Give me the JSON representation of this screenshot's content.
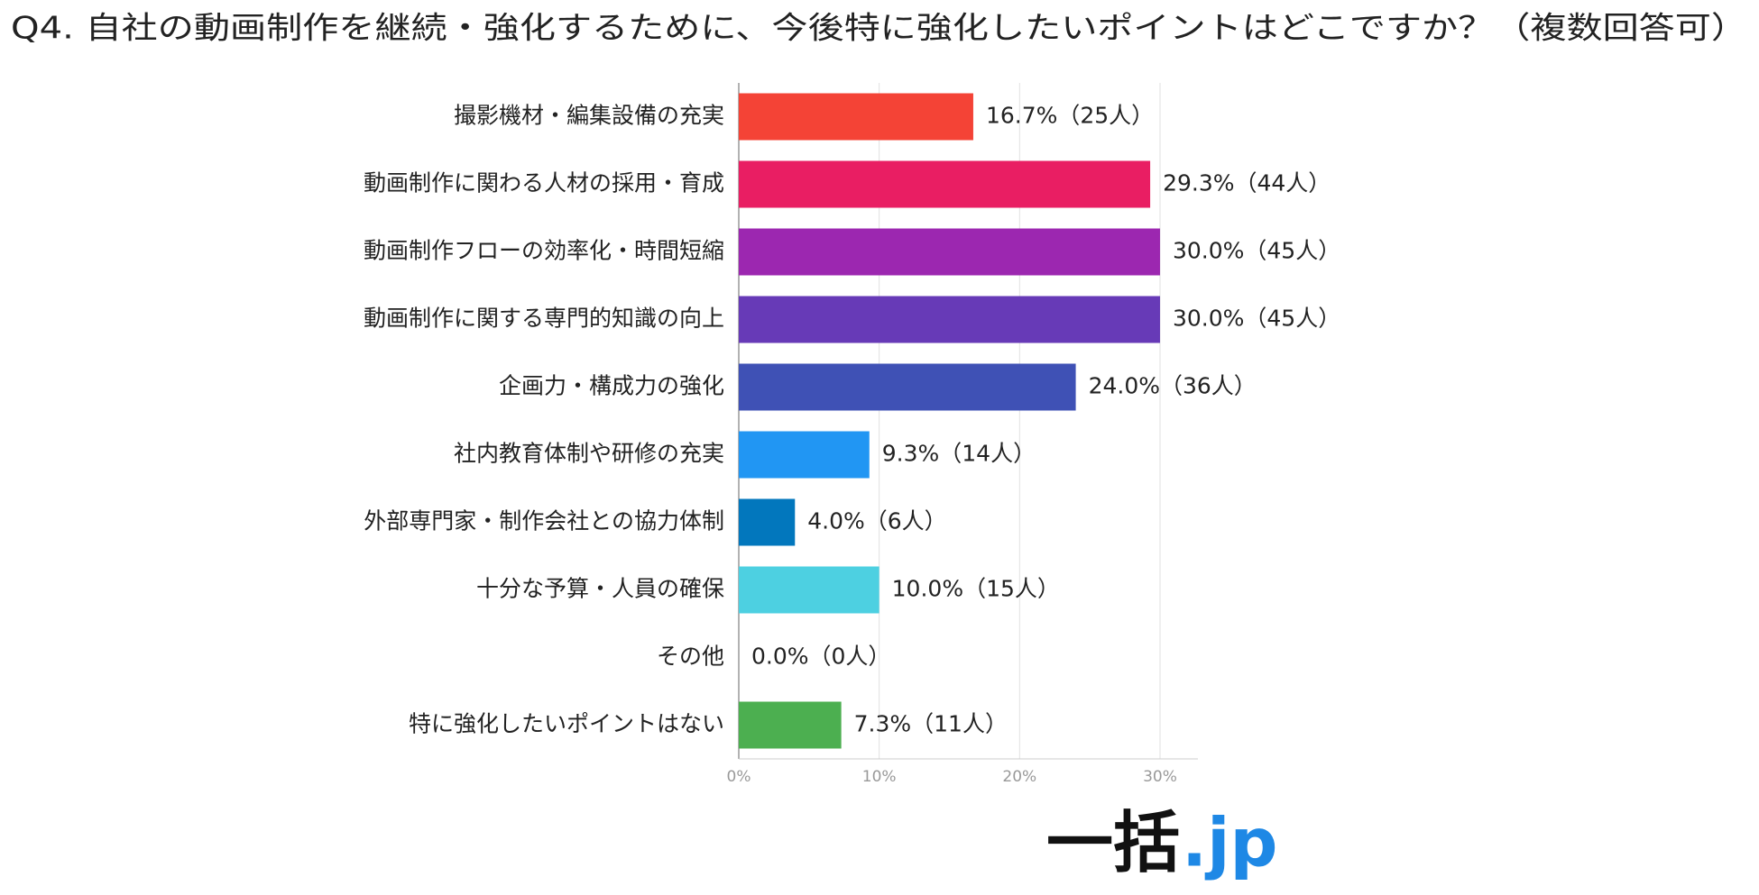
{
  "chart_data": {
    "type": "bar",
    "orientation": "horizontal",
    "title": "Q4. 自社の動画制作を継続・強化するために、今後特に強化したいポイントはどこですか？（複数回答可）",
    "categories": [
      "撮影機材・編集設備の充実",
      "動画制作に関わる人材の採用・育成",
      "動画制作フローの効率化・時間短縮",
      "動画制作に関する専門的知識の向上",
      "企画力・構成力の強化",
      "社内教育体制や研修の充実",
      "外部専門家・制作会社との協力体制",
      "十分な予算・人員の確保",
      "その他",
      "特に強化したいポイントはない"
    ],
    "values": [
      16.7,
      29.3,
      30.0,
      30.0,
      24.0,
      9.3,
      4.0,
      10.0,
      0.0,
      7.3
    ],
    "value_labels": [
      "16.7%（25人）",
      "29.3%（44人）",
      "30.0%（45人）",
      "30.0%（45人）",
      "24.0%（36人）",
      "9.3%（14人）",
      "4.0%（6人）",
      "10.0%（15人）",
      "0.0%（0人）",
      "7.3%（11人）"
    ],
    "colors": [
      "#f44336",
      "#e91e63",
      "#9c27b0",
      "#673ab7",
      "#3f51b5",
      "#2196f3",
      "#0277bd",
      "#4dd0e1",
      "#9e9e9e",
      "#4caf50"
    ],
    "xlim": [
      0,
      32.7
    ],
    "xticks": [
      {
        "value": 0,
        "label": "0%"
      },
      {
        "value": 10,
        "label": "10%"
      },
      {
        "value": 20,
        "label": "20%"
      },
      {
        "value": 30,
        "label": "30%"
      }
    ],
    "grid": true,
    "logo": [
      "一括",
      ".jp"
    ]
  }
}
